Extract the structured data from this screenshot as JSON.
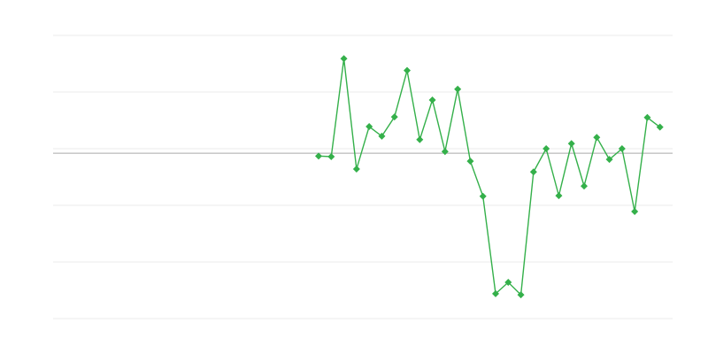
{
  "chart_data": {
    "type": "line",
    "title": "",
    "xlabel": "",
    "ylabel": "",
    "xlim": [
      0,
      49
    ],
    "ylim": [
      -3,
      2
    ],
    "grid": true,
    "gridlines_y": [
      -3,
      -2,
      -1,
      0,
      1,
      2
    ],
    "reference_line_y": -0.08,
    "legend": "none",
    "colors": {
      "series": "#34b04a",
      "grid": "#ebebeb",
      "reference": "#aaaaaa"
    },
    "series": [
      {
        "x": [
          21,
          22,
          23,
          24,
          25,
          26,
          27,
          28,
          29,
          30,
          31,
          32,
          33,
          34,
          35,
          36,
          37,
          38,
          39,
          40,
          41,
          42,
          43,
          44,
          45,
          46,
          47,
          48
        ],
        "values": [
          -0.13,
          -0.14,
          1.59,
          -0.36,
          0.39,
          0.22,
          0.56,
          1.38,
          0.16,
          0.86,
          -0.05,
          1.05,
          -0.22,
          -0.84,
          -2.56,
          -2.36,
          -2.58,
          -0.41,
          0.0,
          -0.83,
          0.09,
          -0.66,
          0.2,
          -0.19,
          0.0,
          -1.11,
          0.55,
          0.38
        ]
      }
    ]
  }
}
